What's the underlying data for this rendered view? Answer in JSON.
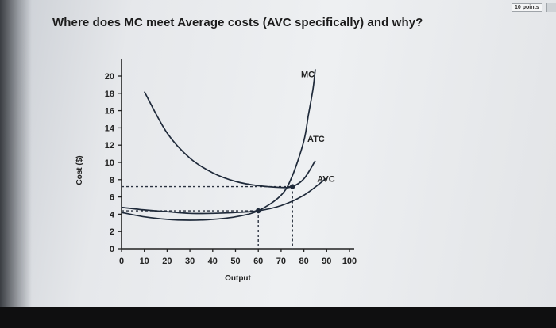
{
  "question": {
    "title": "Where does MC meet Average costs (AVC specifically) and why?",
    "points_badge": "10 points"
  },
  "chart_data": {
    "type": "line",
    "xlabel": "Output",
    "ylabel": "Cost ($)",
    "xlim": [
      0,
      100
    ],
    "ylim": [
      0,
      20
    ],
    "x_ticks": [
      0,
      10,
      20,
      30,
      40,
      50,
      60,
      70,
      80,
      90,
      100
    ],
    "y_ticks": [
      0,
      2,
      4,
      6,
      8,
      10,
      12,
      14,
      16,
      18,
      20
    ],
    "grid": false,
    "series": [
      {
        "name": "MC",
        "x": [
          0,
          10,
          20,
          30,
          40,
          50,
          60,
          70,
          75,
          80,
          82,
          84,
          85
        ],
        "y": [
          4.2,
          3.7,
          3.4,
          3.3,
          3.4,
          3.7,
          4.4,
          6.2,
          8.5,
          12.5,
          15.5,
          18.5,
          20.8
        ]
      },
      {
        "name": "ATC",
        "x": [
          10,
          20,
          30,
          40,
          50,
          60,
          70,
          75,
          80,
          85
        ],
        "y": [
          18.2,
          13.4,
          10.5,
          8.8,
          7.8,
          7.3,
          7.1,
          7.2,
          8.1,
          10.2
        ]
      },
      {
        "name": "AVC",
        "x": [
          0,
          10,
          20,
          30,
          40,
          50,
          60,
          70,
          80,
          90
        ],
        "y": [
          4.8,
          4.5,
          4.3,
          4.1,
          4.1,
          4.2,
          4.4,
          5.0,
          6.2,
          8.2
        ]
      }
    ],
    "annotations": [
      {
        "label": "MC meets ATC",
        "x": 75,
        "y": 7.2
      },
      {
        "label": "MC meets AVC",
        "x": 60,
        "y": 4.4
      }
    ]
  }
}
